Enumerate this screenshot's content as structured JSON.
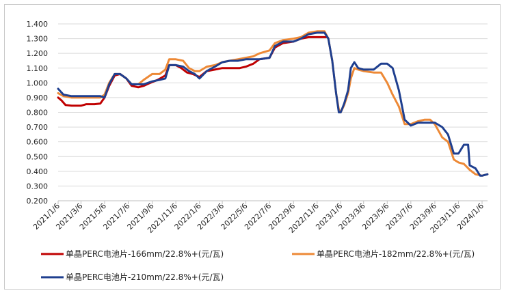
{
  "chart_data": {
    "type": "line",
    "title": "",
    "xlabel": "",
    "ylabel": "",
    "ylim": [
      0.2,
      1.4
    ],
    "y_ticks": [
      "1.400",
      "1.300",
      "1.200",
      "1.100",
      "1.000",
      "0.900",
      "0.800",
      "0.700",
      "0.600",
      "0.500",
      "0.400",
      "0.300",
      "0.200"
    ],
    "x_ticks": [
      "2021/1/6",
      "2021/3/6",
      "2021/5/6",
      "2021/7/6",
      "2021/9/6",
      "2021/11/6",
      "2022/1/6",
      "2022/3/6",
      "2022/5/6",
      "2022/7/6",
      "2022/9/6",
      "2022/11/6",
      "2023/1/6",
      "2023/3/6",
      "2023/5/6",
      "2023/7/6",
      "2023/9/6",
      "2023/11/6",
      "2024/1/6"
    ],
    "grid": "horizontal",
    "legend_position": "bottom",
    "series": [
      {
        "name": "单晶PERC电池片-166mm/22.8%+(元/瓦)",
        "color": "#c00000",
        "points": [
          [
            "2021/1/6",
            0.9
          ],
          [
            "2021/1/15",
            0.88
          ],
          [
            "2021/1/25",
            0.85
          ],
          [
            "2021/2/10",
            0.845
          ],
          [
            "2021/3/6",
            0.845
          ],
          [
            "2021/3/20",
            0.855
          ],
          [
            "2021/4/10",
            0.855
          ],
          [
            "2021/4/25",
            0.86
          ],
          [
            "2021/5/6",
            0.9
          ],
          [
            "2021/5/18",
            0.98
          ],
          [
            "2021/6/1",
            1.05
          ],
          [
            "2021/6/15",
            1.06
          ],
          [
            "2021/7/1",
            1.03
          ],
          [
            "2021/7/15",
            0.98
          ],
          [
            "2021/8/1",
            0.97
          ],
          [
            "2021/8/15",
            0.98
          ],
          [
            "2021/9/1",
            1.0
          ],
          [
            "2021/9/20",
            1.02
          ],
          [
            "2021/10/10",
            1.05
          ],
          [
            "2021/10/20",
            1.12
          ],
          [
            "2021/11/6",
            1.12
          ],
          [
            "2021/11/20",
            1.1
          ],
          [
            "2021/12/5",
            1.07
          ],
          [
            "2021/12/20",
            1.06
          ],
          [
            "2022/1/6",
            1.04
          ],
          [
            "2022/1/25",
            1.08
          ],
          [
            "2022/2/15",
            1.09
          ],
          [
            "2022/3/6",
            1.1
          ],
          [
            "2022/4/1",
            1.1
          ],
          [
            "2022/4/20",
            1.1
          ],
          [
            "2022/5/6",
            1.11
          ],
          [
            "2022/5/25",
            1.13
          ],
          [
            "2022/6/10",
            1.16
          ],
          [
            "2022/7/6",
            1.17
          ],
          [
            "2022/7/20",
            1.24
          ],
          [
            "2022/8/10",
            1.27
          ],
          [
            "2022/9/6",
            1.28
          ],
          [
            "2022/9/25",
            1.3
          ],
          [
            "2022/10/15",
            1.31
          ],
          [
            "2022/11/6",
            1.31
          ],
          [
            "2022/12/1",
            1.31
          ]
        ]
      },
      {
        "name": "单晶PERC电池片-182mm/22.8%+(元/瓦)",
        "color": "#ed8936",
        "points": [
          [
            "2021/1/6",
            0.93
          ],
          [
            "2021/1/20",
            0.91
          ],
          [
            "2021/2/10",
            0.9
          ],
          [
            "2021/3/6",
            0.9
          ],
          [
            "2021/4/1",
            0.9
          ],
          [
            "2021/4/25",
            0.9
          ],
          [
            "2021/5/6",
            0.92
          ],
          [
            "2021/5/18",
            1.0
          ],
          [
            "2021/6/1",
            1.06
          ],
          [
            "2021/6/15",
            1.06
          ],
          [
            "2021/7/1",
            1.03
          ],
          [
            "2021/7/15",
            0.99
          ],
          [
            "2021/8/1",
            0.99
          ],
          [
            "2021/8/15",
            1.02
          ],
          [
            "2021/9/6",
            1.06
          ],
          [
            "2021/9/25",
            1.06
          ],
          [
            "2021/10/10",
            1.09
          ],
          [
            "2021/10/20",
            1.16
          ],
          [
            "2021/11/6",
            1.16
          ],
          [
            "2021/11/25",
            1.15
          ],
          [
            "2021/12/10",
            1.1
          ],
          [
            "2021/12/25",
            1.08
          ],
          [
            "2022/1/6",
            1.08
          ],
          [
            "2022/1/25",
            1.11
          ],
          [
            "2022/2/15",
            1.12
          ],
          [
            "2022/3/6",
            1.14
          ],
          [
            "2022/3/25",
            1.15
          ],
          [
            "2022/4/15",
            1.16
          ],
          [
            "2022/5/6",
            1.17
          ],
          [
            "2022/5/25",
            1.18
          ],
          [
            "2022/6/10",
            1.2
          ],
          [
            "2022/7/6",
            1.22
          ],
          [
            "2022/7/20",
            1.27
          ],
          [
            "2022/8/10",
            1.29
          ],
          [
            "2022/9/6",
            1.3
          ],
          [
            "2022/9/25",
            1.31
          ],
          [
            "2022/10/15",
            1.34
          ],
          [
            "2022/11/6",
            1.35
          ],
          [
            "2022/11/25",
            1.35
          ],
          [
            "2022/12/5",
            1.3
          ],
          [
            "2022/12/15",
            1.15
          ],
          [
            "2022/12/25",
            0.93
          ],
          [
            "2023/1/1",
            0.82
          ],
          [
            "2023/1/6",
            0.8
          ],
          [
            "2023/1/15",
            0.85
          ],
          [
            "2023/1/25",
            0.93
          ],
          [
            "2023/2/1",
            1.03
          ],
          [
            "2023/2/10",
            1.1
          ],
          [
            "2023/2/20",
            1.09
          ],
          [
            "2023/3/6",
            1.08
          ],
          [
            "2023/4/1",
            1.07
          ],
          [
            "2023/4/20",
            1.07
          ],
          [
            "2023/5/6",
            1.0
          ],
          [
            "2023/5/20",
            0.92
          ],
          [
            "2023/6/5",
            0.84
          ],
          [
            "2023/6/20",
            0.72
          ],
          [
            "2023/7/6",
            0.72
          ],
          [
            "2023/7/25",
            0.74
          ],
          [
            "2023/8/10",
            0.75
          ],
          [
            "2023/8/25",
            0.75
          ],
          [
            "2023/9/6",
            0.72
          ],
          [
            "2023/9/25",
            0.63
          ],
          [
            "2023/10/10",
            0.6
          ],
          [
            "2023/10/25",
            0.48
          ],
          [
            "2023/11/6",
            0.46
          ],
          [
            "2023/11/20",
            0.45
          ],
          [
            "2023/12/5",
            0.41
          ],
          [
            "2023/12/20",
            0.38
          ],
          [
            "2024/1/6",
            0.37
          ],
          [
            "2024/1/20",
            0.38
          ]
        ]
      },
      {
        "name": "单晶PERC电池片-210mm/22.8%+(元/瓦)",
        "color": "#1f3f8f",
        "points": [
          [
            "2021/1/6",
            0.96
          ],
          [
            "2021/1/20",
            0.92
          ],
          [
            "2021/2/10",
            0.91
          ],
          [
            "2021/3/6",
            0.91
          ],
          [
            "2021/4/1",
            0.91
          ],
          [
            "2021/4/25",
            0.91
          ],
          [
            "2021/5/6",
            0.9
          ],
          [
            "2021/5/18",
            0.99
          ],
          [
            "2021/6/1",
            1.06
          ],
          [
            "2021/6/15",
            1.06
          ],
          [
            "2021/7/1",
            1.03
          ],
          [
            "2021/7/15",
            0.99
          ],
          [
            "2021/8/1",
            0.99
          ],
          [
            "2021/8/15",
            0.99
          ],
          [
            "2021/9/6",
            1.01
          ],
          [
            "2021/9/25",
            1.02
          ],
          [
            "2021/10/10",
            1.03
          ],
          [
            "2021/10/20",
            1.12
          ],
          [
            "2021/11/6",
            1.12
          ],
          [
            "2021/11/25",
            1.11
          ],
          [
            "2021/12/10",
            1.08
          ],
          [
            "2021/12/25",
            1.06
          ],
          [
            "2022/1/6",
            1.03
          ],
          [
            "2022/1/25",
            1.08
          ],
          [
            "2022/2/15",
            1.11
          ],
          [
            "2022/3/6",
            1.14
          ],
          [
            "2022/3/25",
            1.15
          ],
          [
            "2022/4/15",
            1.15
          ],
          [
            "2022/5/6",
            1.16
          ],
          [
            "2022/5/25",
            1.16
          ],
          [
            "2022/6/10",
            1.16
          ],
          [
            "2022/7/6",
            1.17
          ],
          [
            "2022/7/20",
            1.25
          ],
          [
            "2022/8/10",
            1.28
          ],
          [
            "2022/9/6",
            1.28
          ],
          [
            "2022/9/25",
            1.3
          ],
          [
            "2022/10/15",
            1.33
          ],
          [
            "2022/11/6",
            1.34
          ],
          [
            "2022/11/25",
            1.34
          ],
          [
            "2022/12/5",
            1.3
          ],
          [
            "2022/12/15",
            1.15
          ],
          [
            "2022/12/25",
            0.93
          ],
          [
            "2023/1/1",
            0.8
          ],
          [
            "2023/1/6",
            0.8
          ],
          [
            "2023/1/15",
            0.86
          ],
          [
            "2023/1/25",
            0.95
          ],
          [
            "2023/2/1",
            1.1
          ],
          [
            "2023/2/10",
            1.14
          ],
          [
            "2023/2/20",
            1.1
          ],
          [
            "2023/3/6",
            1.09
          ],
          [
            "2023/4/1",
            1.09
          ],
          [
            "2023/4/20",
            1.13
          ],
          [
            "2023/5/6",
            1.13
          ],
          [
            "2023/5/20",
            1.1
          ],
          [
            "2023/6/5",
            0.95
          ],
          [
            "2023/6/20",
            0.75
          ],
          [
            "2023/7/6",
            0.71
          ],
          [
            "2023/7/25",
            0.73
          ],
          [
            "2023/8/10",
            0.73
          ],
          [
            "2023/8/25",
            0.73
          ],
          [
            "2023/9/6",
            0.73
          ],
          [
            "2023/9/25",
            0.7
          ],
          [
            "2023/10/10",
            0.65
          ],
          [
            "2023/10/25",
            0.52
          ],
          [
            "2023/11/6",
            0.52
          ],
          [
            "2023/11/20",
            0.58
          ],
          [
            "2023/12/1",
            0.58
          ],
          [
            "2023/12/5",
            0.44
          ],
          [
            "2023/12/20",
            0.42
          ],
          [
            "2024/1/1",
            0.37
          ],
          [
            "2024/1/6",
            0.37
          ],
          [
            "2024/1/20",
            0.38
          ]
        ]
      }
    ]
  }
}
